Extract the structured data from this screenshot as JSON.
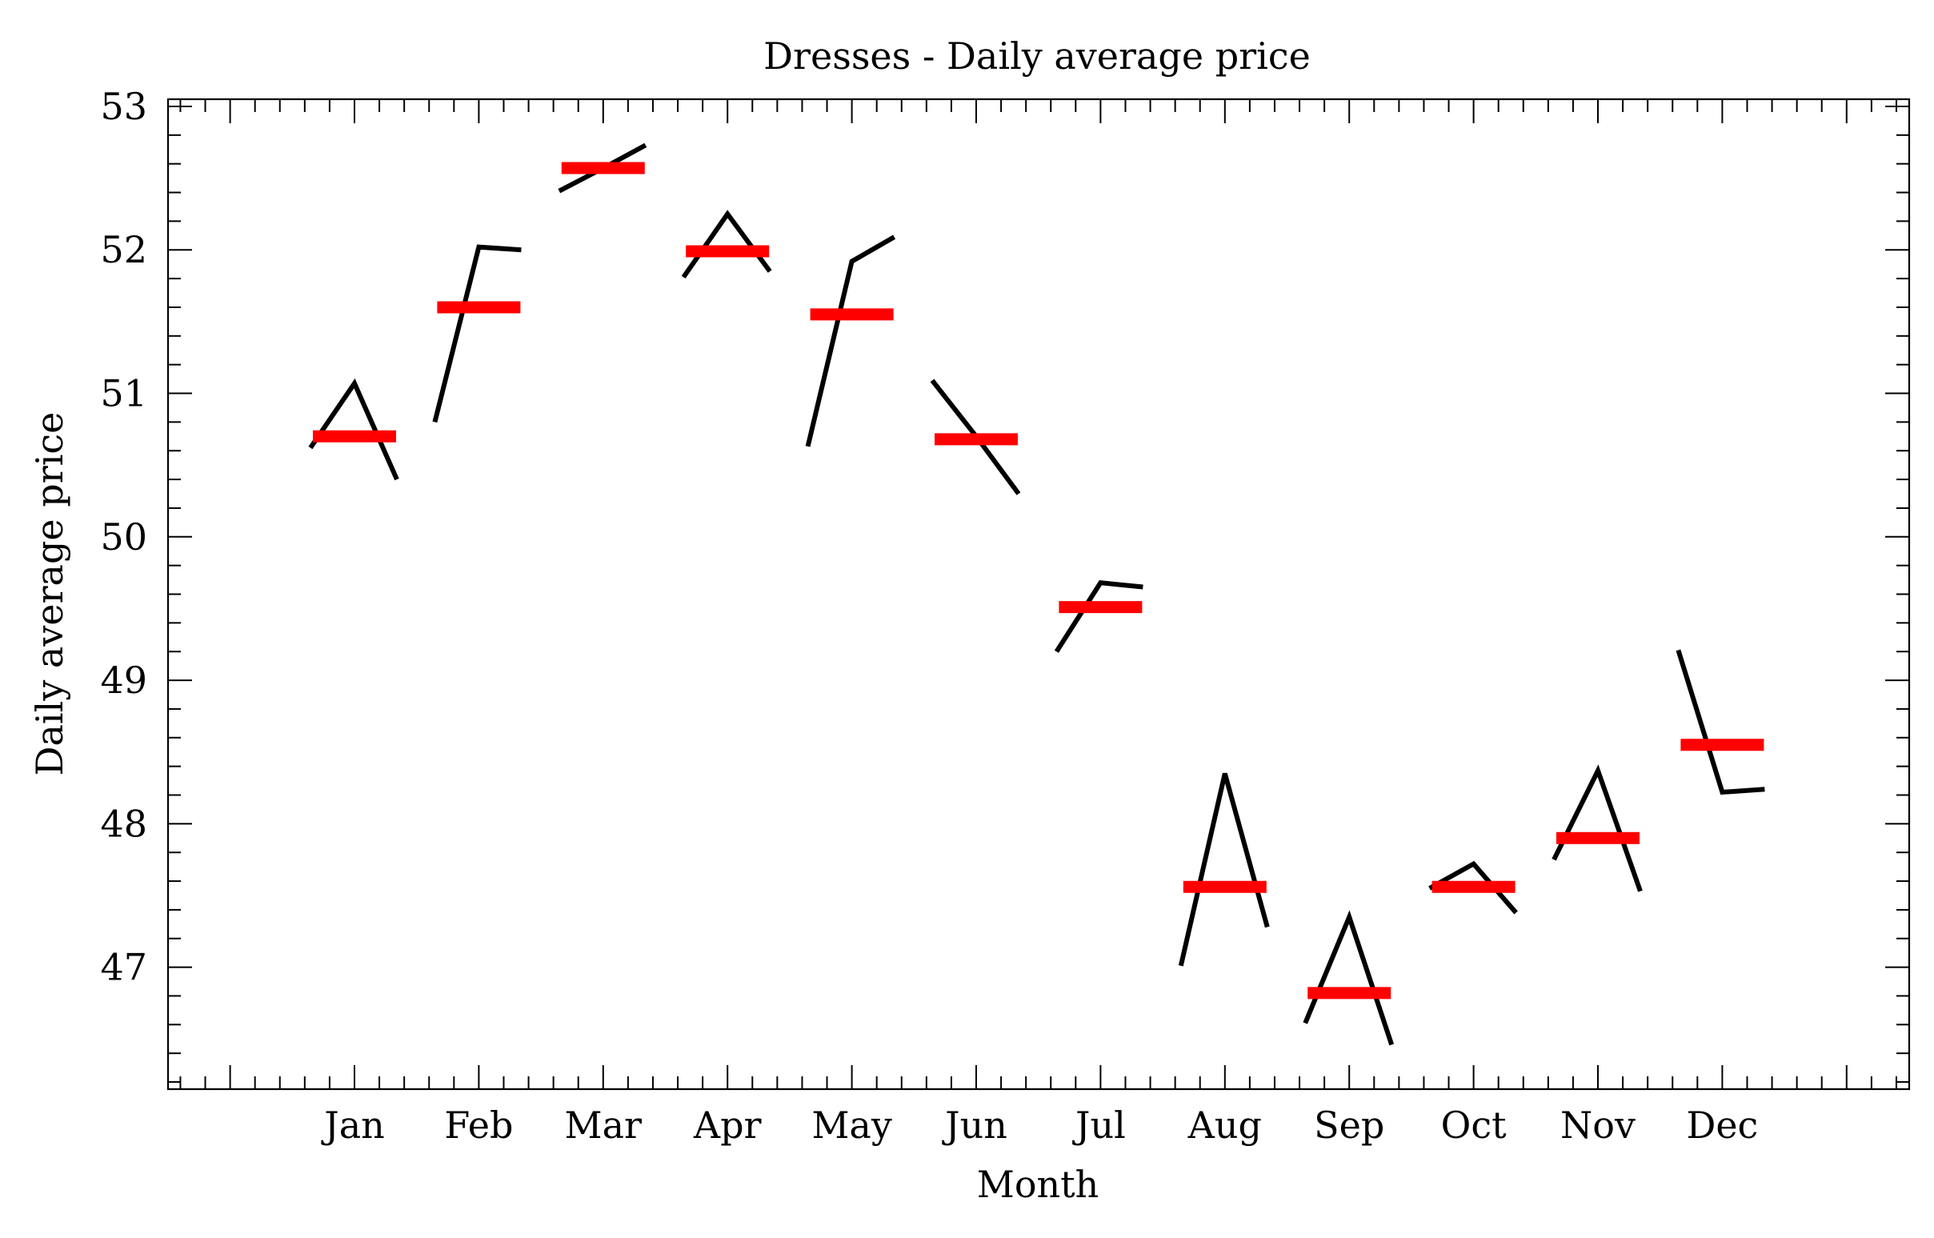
{
  "chart_data": {
    "type": "line",
    "title": "Dresses - Daily average price",
    "xlabel": "Month",
    "ylabel": "Daily average price",
    "ylim": [
      46.15,
      53.05
    ],
    "yticks": [
      47,
      48,
      49,
      50,
      51,
      52,
      53
    ],
    "ytick_labels": [
      "47",
      "48",
      "49",
      "50",
      "51",
      "52",
      "53"
    ],
    "grid": false,
    "categories": [
      "Jan",
      "Feb",
      "Mar",
      "Apr",
      "May",
      "Jun",
      "Jul",
      "Aug",
      "Sep",
      "Oct",
      "Nov",
      "Dec"
    ],
    "series": [
      {
        "role": "daily-profile",
        "color": "#000000",
        "values": [
          [
            50.62,
            51.07,
            50.4
          ],
          [
            50.8,
            52.02,
            52.0
          ],
          [
            52.41,
            52.57,
            52.73
          ],
          [
            51.81,
            52.25,
            51.85
          ],
          [
            50.63,
            51.92,
            52.09
          ],
          [
            51.09,
            50.7,
            50.3
          ],
          [
            49.2,
            49.68,
            49.65
          ],
          [
            47.01,
            48.35,
            47.28
          ],
          [
            46.61,
            47.35,
            46.46
          ],
          [
            47.55,
            47.72,
            47.38
          ],
          [
            47.75,
            48.37,
            47.53
          ],
          [
            49.21,
            48.22,
            48.24
          ]
        ]
      },
      {
        "role": "monthly-mean",
        "color": "#ff0000",
        "values": [
          50.7,
          51.6,
          52.57,
          51.99,
          51.55,
          50.68,
          49.51,
          47.56,
          46.82,
          47.56,
          47.9,
          48.55
        ]
      }
    ]
  }
}
